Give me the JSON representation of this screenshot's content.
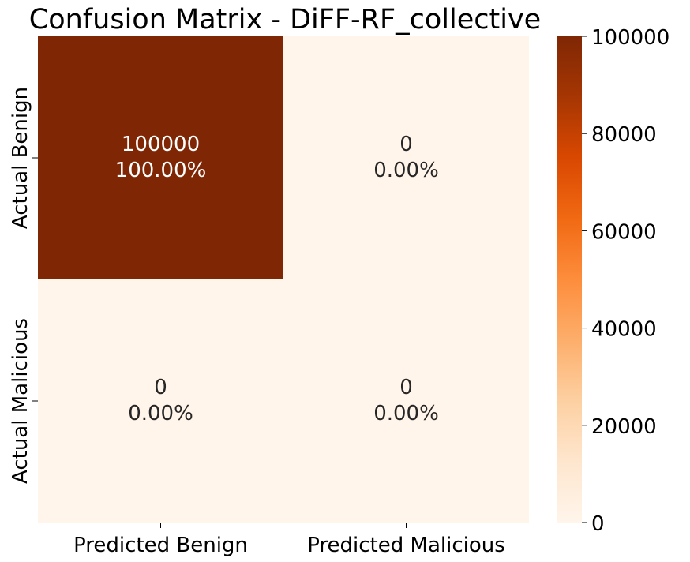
{
  "chart_data": {
    "type": "heatmap",
    "title": "Confusion Matrix - DiFF-RF_collective",
    "x_categories": [
      "Predicted Benign",
      "Predicted Malicious"
    ],
    "y_categories": [
      "Actual Benign",
      "Actual Malicious"
    ],
    "values": [
      [
        100000,
        0
      ],
      [
        0,
        0
      ]
    ],
    "percentages": [
      "100.00%",
      "0.00%",
      "0.00%",
      "0.00%"
    ],
    "cell_labels": [
      "100000",
      "0",
      "0",
      "0"
    ],
    "colorbar": {
      "min": 0,
      "max": 100000,
      "ticks": [
        0,
        20000,
        40000,
        60000,
        80000,
        100000
      ],
      "tick_labels": [
        "0",
        "20000",
        "40000",
        "60000",
        "80000",
        "100000"
      ]
    },
    "colormap": [
      "#fff5eb",
      "#fee6ce",
      "#fdd0a2",
      "#fdae6b",
      "#fd8d3c",
      "#f16913",
      "#d94801",
      "#a63603",
      "#7f2704"
    ],
    "annotation_colors": {
      "dark_cell": "#ffffff",
      "light_cell": "#262626"
    }
  }
}
